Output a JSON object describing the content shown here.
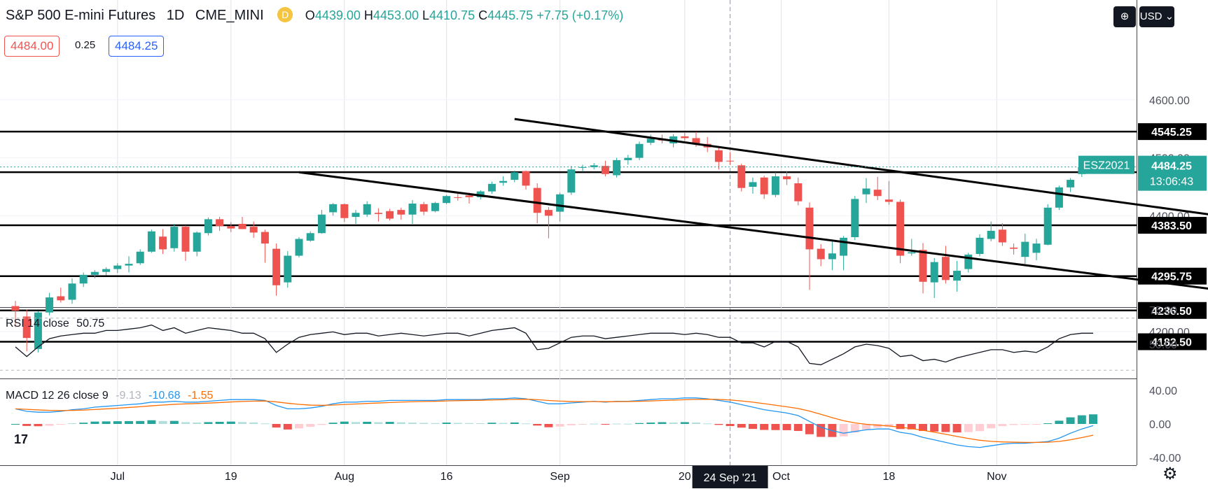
{
  "header": {
    "symbol": "S&P 500 E-mini Futures",
    "interval": "1D",
    "exchange": "CME_MINI",
    "badge": "D",
    "o_key": "O",
    "o": "4439.00",
    "h_key": "H",
    "h": "4453.00",
    "l_key": "L",
    "l": "4410.75",
    "c_key": "C",
    "c": "4445.75",
    "change": "+7.75 (+0.17%)"
  },
  "trade": {
    "sell": "4484.00",
    "spread": "0.25",
    "buy": "4484.25"
  },
  "toolbar": {
    "add_icon": "plus-circle-icon",
    "currency": "USD"
  },
  "colors": {
    "up": "#26a69a",
    "down": "#ef5350",
    "rsi": "#131722",
    "macd": "#2196f3",
    "signal": "#ff6d00"
  },
  "chart_data": [
    {
      "type": "candlestick",
      "symbol": "ESZ2021",
      "y_ticks": [
        "4600.00",
        "4500.00",
        "4400.00",
        "4200.00"
      ],
      "x_ticks": [
        "Jul",
        "19",
        "Aug",
        "16",
        "Sep",
        "20",
        "Oct",
        "18",
        "Nov"
      ],
      "crosshair_date": "24 Sep '21",
      "last_price_label": "ESZ2021",
      "last_price": "4484.25",
      "countdown": "13:06:43",
      "horizontal_levels": [
        "4545.25",
        "4475.25",
        "4383.50",
        "4295.75",
        "4236.50",
        "4182.50"
      ],
      "trend_channel": {
        "upper": [
          [
            44,
            4567
          ],
          [
            131,
            4333
          ]
        ],
        "lower": [
          [
            25,
            4475
          ],
          [
            120,
            4237
          ]
        ]
      },
      "candles": [
        {
          "o": 4244,
          "h": 4253,
          "l": 4208,
          "c": 4236
        },
        {
          "o": 4226,
          "h": 4238,
          "l": 4166,
          "c": 4189
        },
        {
          "o": 4170,
          "h": 4235,
          "l": 4164,
          "c": 4233
        },
        {
          "o": 4233,
          "h": 4267,
          "l": 4228,
          "c": 4259
        },
        {
          "o": 4261,
          "h": 4276,
          "l": 4250,
          "c": 4254
        },
        {
          "o": 4255,
          "h": 4292,
          "l": 4248,
          "c": 4283
        },
        {
          "o": 4283,
          "h": 4302,
          "l": 4277,
          "c": 4298
        },
        {
          "o": 4298,
          "h": 4306,
          "l": 4292,
          "c": 4303
        },
        {
          "o": 4303,
          "h": 4311,
          "l": 4297,
          "c": 4308
        },
        {
          "o": 4308,
          "h": 4318,
          "l": 4301,
          "c": 4314
        },
        {
          "o": 4314,
          "h": 4330,
          "l": 4302,
          "c": 4317
        },
        {
          "o": 4318,
          "h": 4342,
          "l": 4315,
          "c": 4338
        },
        {
          "o": 4338,
          "h": 4376,
          "l": 4336,
          "c": 4373
        },
        {
          "o": 4364,
          "h": 4377,
          "l": 4334,
          "c": 4342
        },
        {
          "o": 4344,
          "h": 4386,
          "l": 4338,
          "c": 4381
        },
        {
          "o": 4381,
          "h": 4383,
          "l": 4322,
          "c": 4338
        },
        {
          "o": 4338,
          "h": 4373,
          "l": 4330,
          "c": 4371
        },
        {
          "o": 4370,
          "h": 4397,
          "l": 4366,
          "c": 4394
        },
        {
          "o": 4394,
          "h": 4398,
          "l": 4374,
          "c": 4382
        },
        {
          "o": 4382,
          "h": 4389,
          "l": 4372,
          "c": 4378
        },
        {
          "o": 4386,
          "h": 4398,
          "l": 4377,
          "c": 4377
        },
        {
          "o": 4381,
          "h": 4390,
          "l": 4362,
          "c": 4371
        },
        {
          "o": 4372,
          "h": 4376,
          "l": 4319,
          "c": 4352
        },
        {
          "o": 4343,
          "h": 4352,
          "l": 4262,
          "c": 4280
        },
        {
          "o": 4285,
          "h": 4339,
          "l": 4276,
          "c": 4331
        },
        {
          "o": 4331,
          "h": 4363,
          "l": 4328,
          "c": 4360
        },
        {
          "o": 4357,
          "h": 4373,
          "l": 4355,
          "c": 4370
        },
        {
          "o": 4370,
          "h": 4410,
          "l": 4369,
          "c": 4402
        },
        {
          "o": 4406,
          "h": 4422,
          "l": 4400,
          "c": 4420
        },
        {
          "o": 4420,
          "h": 4421,
          "l": 4389,
          "c": 4396
        },
        {
          "o": 4398,
          "h": 4410,
          "l": 4386,
          "c": 4405
        },
        {
          "o": 4402,
          "h": 4425,
          "l": 4398,
          "c": 4420
        },
        {
          "o": 4405,
          "h": 4413,
          "l": 4390,
          "c": 4403
        },
        {
          "o": 4408,
          "h": 4412,
          "l": 4392,
          "c": 4395
        },
        {
          "o": 4410,
          "h": 4414,
          "l": 4393,
          "c": 4402
        },
        {
          "o": 4402,
          "h": 4427,
          "l": 4386,
          "c": 4421
        },
        {
          "o": 4420,
          "h": 4424,
          "l": 4401,
          "c": 4407
        },
        {
          "o": 4408,
          "h": 4424,
          "l": 4406,
          "c": 4422
        },
        {
          "o": 4422,
          "h": 4436,
          "l": 4420,
          "c": 4434
        },
        {
          "o": 4432,
          "h": 4438,
          "l": 4426,
          "c": 4431
        },
        {
          "o": 4435,
          "h": 4440,
          "l": 4421,
          "c": 4432
        },
        {
          "o": 4432,
          "h": 4444,
          "l": 4428,
          "c": 4442
        },
        {
          "o": 4442,
          "h": 4459,
          "l": 4438,
          "c": 4455
        },
        {
          "o": 4457,
          "h": 4468,
          "l": 4452,
          "c": 4460
        },
        {
          "o": 4462,
          "h": 4478,
          "l": 4458,
          "c": 4475
        },
        {
          "o": 4477,
          "h": 4478,
          "l": 4445,
          "c": 4452
        },
        {
          "o": 4448,
          "h": 4456,
          "l": 4387,
          "c": 4405
        },
        {
          "o": 4410,
          "h": 4415,
          "l": 4361,
          "c": 4400
        },
        {
          "o": 4407,
          "h": 4440,
          "l": 4390,
          "c": 4437
        },
        {
          "o": 4440,
          "h": 4486,
          "l": 4436,
          "c": 4480
        },
        {
          "o": 4484,
          "h": 4488,
          "l": 4476,
          "c": 4484
        },
        {
          "o": 4484,
          "h": 4491,
          "l": 4480,
          "c": 4487
        },
        {
          "o": 4486,
          "h": 4495,
          "l": 4468,
          "c": 4472
        },
        {
          "o": 4470,
          "h": 4500,
          "l": 4466,
          "c": 4496
        },
        {
          "o": 4496,
          "h": 4505,
          "l": 4488,
          "c": 4500
        },
        {
          "o": 4500,
          "h": 4528,
          "l": 4496,
          "c": 4524
        },
        {
          "o": 4526,
          "h": 4540,
          "l": 4522,
          "c": 4533
        },
        {
          "o": 4533,
          "h": 4540,
          "l": 4525,
          "c": 4530
        },
        {
          "o": 4525,
          "h": 4541,
          "l": 4518,
          "c": 4537
        },
        {
          "o": 4537,
          "h": 4543,
          "l": 4529,
          "c": 4534
        },
        {
          "o": 4534,
          "h": 4545,
          "l": 4519,
          "c": 4524
        },
        {
          "o": 4524,
          "h": 4536,
          "l": 4510,
          "c": 4518
        },
        {
          "o": 4513,
          "h": 4520,
          "l": 4480,
          "c": 4493
        },
        {
          "o": 4495,
          "h": 4510,
          "l": 4488,
          "c": 4494
        },
        {
          "o": 4487,
          "h": 4490,
          "l": 4442,
          "c": 4448
        },
        {
          "o": 4450,
          "h": 4466,
          "l": 4438,
          "c": 4458
        },
        {
          "o": 4466,
          "h": 4469,
          "l": 4429,
          "c": 4437
        },
        {
          "o": 4436,
          "h": 4475,
          "l": 4432,
          "c": 4468
        },
        {
          "o": 4468,
          "h": 4476,
          "l": 4453,
          "c": 4463
        },
        {
          "o": 4456,
          "h": 4466,
          "l": 4418,
          "c": 4425
        },
        {
          "o": 4414,
          "h": 4423,
          "l": 4272,
          "c": 4342
        },
        {
          "o": 4343,
          "h": 4351,
          "l": 4313,
          "c": 4325
        },
        {
          "o": 4325,
          "h": 4358,
          "l": 4306,
          "c": 4335
        },
        {
          "o": 4331,
          "h": 4365,
          "l": 4306,
          "c": 4362
        },
        {
          "o": 4363,
          "h": 4434,
          "l": 4358,
          "c": 4429
        },
        {
          "o": 4437,
          "h": 4465,
          "l": 4422,
          "c": 4447
        },
        {
          "o": 4445,
          "h": 4467,
          "l": 4427,
          "c": 4434
        },
        {
          "o": 4428,
          "h": 4460,
          "l": 4419,
          "c": 4424
        },
        {
          "o": 4424,
          "h": 4428,
          "l": 4318,
          "c": 4331
        },
        {
          "o": 4335,
          "h": 4360,
          "l": 4331,
          "c": 4337
        },
        {
          "o": 4341,
          "h": 4353,
          "l": 4266,
          "c": 4286
        },
        {
          "o": 4285,
          "h": 4327,
          "l": 4258,
          "c": 4320
        },
        {
          "o": 4329,
          "h": 4348,
          "l": 4283,
          "c": 4289
        },
        {
          "o": 4288,
          "h": 4322,
          "l": 4269,
          "c": 4305
        },
        {
          "o": 4308,
          "h": 4336,
          "l": 4302,
          "c": 4333
        },
        {
          "o": 4334,
          "h": 4368,
          "l": 4330,
          "c": 4362
        },
        {
          "o": 4360,
          "h": 4390,
          "l": 4356,
          "c": 4374
        },
        {
          "o": 4376,
          "h": 4387,
          "l": 4348,
          "c": 4354
        },
        {
          "o": 4345,
          "h": 4352,
          "l": 4333,
          "c": 4343
        },
        {
          "o": 4329,
          "h": 4369,
          "l": 4317,
          "c": 4355
        },
        {
          "o": 4336,
          "h": 4360,
          "l": 4323,
          "c": 4352
        },
        {
          "o": 4350,
          "h": 4420,
          "l": 4349,
          "c": 4414
        },
        {
          "o": 4414,
          "h": 4452,
          "l": 4410,
          "c": 4449
        },
        {
          "o": 4449,
          "h": 4465,
          "l": 4441,
          "c": 4462
        },
        {
          "o": 4472,
          "h": 4490,
          "l": 4467,
          "c": 4484
        }
      ]
    },
    {
      "type": "line",
      "name": "RSI",
      "label": "RSI 14 close",
      "last_value": "50.75",
      "y_ticks": [
        "75.00",
        "50.00"
      ],
      "bands": [
        70,
        30
      ],
      "values": [
        48,
        41,
        48,
        54,
        56,
        57,
        58,
        58,
        60,
        60,
        61,
        62,
        64,
        60,
        62,
        58,
        60,
        62,
        61,
        60,
        58,
        58,
        54,
        44,
        50,
        55,
        57,
        58,
        59,
        57,
        58,
        58,
        56,
        57,
        58,
        57,
        56,
        57,
        58,
        58,
        56,
        58,
        60,
        61,
        62,
        58,
        46,
        47,
        51,
        55,
        56,
        56,
        54,
        55,
        56,
        57,
        58,
        58,
        58,
        57,
        58,
        57,
        55,
        55,
        51,
        51,
        48,
        52,
        52,
        48,
        36,
        35,
        39,
        43,
        48,
        50,
        49,
        47,
        41,
        42,
        38,
        39,
        37,
        40,
        42,
        44,
        46,
        46,
        44,
        45,
        44,
        48,
        54,
        57,
        58,
        58
      ]
    },
    {
      "type": "histogram+line",
      "name": "MACD",
      "label": "MACD 12 26 close 9",
      "values_label": [
        "-9.13",
        "-10.68",
        "-1.55"
      ],
      "y_ticks": [
        "40.00",
        "0.00",
        "-40.00"
      ],
      "macd": [
        18,
        15,
        14,
        14,
        15,
        17,
        18,
        20,
        21,
        22,
        23,
        24,
        26,
        26,
        27,
        26,
        26,
        27,
        28,
        29,
        29,
        29,
        28,
        22,
        18,
        18,
        19,
        21,
        24,
        26,
        26,
        27,
        27,
        28,
        28,
        28,
        28,
        28,
        29,
        29,
        29,
        29,
        30,
        30,
        31,
        30,
        27,
        24,
        24,
        25,
        26,
        27,
        26,
        27,
        27,
        28,
        29,
        30,
        30,
        31,
        31,
        30,
        28,
        26,
        23,
        20,
        17,
        15,
        13,
        10,
        3,
        -4,
        -8,
        -11,
        -9,
        -7,
        -6,
        -6,
        -10,
        -12,
        -16,
        -19,
        -22,
        -25,
        -27,
        -28,
        -26,
        -24,
        -23,
        -23,
        -22,
        -21,
        -17,
        -11,
        -6,
        -2
      ]
    }
  ]
}
